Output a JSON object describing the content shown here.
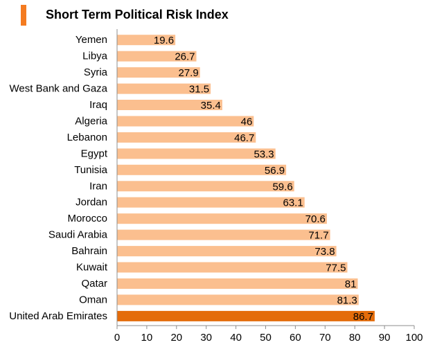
{
  "colors": {
    "bar": "#fbbf8f",
    "highlight": "#e46c0a",
    "marker": "#f47b20",
    "axis": "#8c8c8c"
  },
  "chart_data": {
    "type": "bar",
    "orientation": "horizontal",
    "title": "Short Term Political Risk Index",
    "categories": [
      "Yemen",
      "Libya",
      "Syria",
      "West Bank and Gaza",
      "Iraq",
      "Algeria",
      "Lebanon",
      "Egypt",
      "Tunisia",
      "Iran",
      "Jordan",
      "Morocco",
      "Saudi Arabia",
      "Bahrain",
      "Kuwait",
      "Qatar",
      "Oman",
      "United Arab Emirates"
    ],
    "values": [
      19.6,
      26.7,
      27.9,
      31.5,
      35.4,
      46,
      46.7,
      53.3,
      56.9,
      59.6,
      63.1,
      70.6,
      71.7,
      73.8,
      77.5,
      81,
      81.3,
      86.7
    ],
    "value_labels": [
      "19.6",
      "26.7",
      "27.9",
      "31.5",
      "35.4",
      "46",
      "46.7",
      "53.3",
      "56.9",
      "59.6",
      "63.1",
      "70.6",
      "71.7",
      "73.8",
      "77.5",
      "81",
      "81.3",
      "86.7"
    ],
    "highlight_category": "United Arab Emirates",
    "xlim": [
      0,
      100
    ],
    "xticks": [
      0,
      10,
      20,
      30,
      40,
      50,
      60,
      70,
      80,
      90,
      100
    ],
    "grid": false,
    "legend": "none"
  }
}
